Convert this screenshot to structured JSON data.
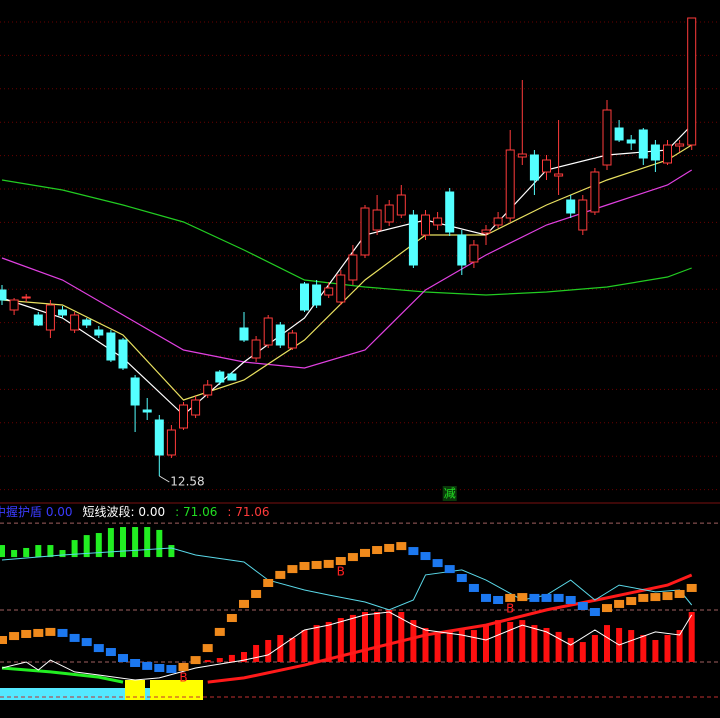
{
  "chart_data": [
    {
      "type": "candlestick",
      "ylim": [
        12.04,
        22.1
      ],
      "up_color": "#ff3b3b",
      "down_color": "#54ffff",
      "candles": [
        [
          16.3,
          16.4,
          16.0,
          16.1
        ],
        [
          15.9,
          16.14,
          15.8,
          16.1
        ],
        [
          16.14,
          16.22,
          16.06,
          16.16
        ],
        [
          15.8,
          15.86,
          15.58,
          15.6
        ],
        [
          15.5,
          16.1,
          15.34,
          16.0
        ],
        [
          15.9,
          15.98,
          15.74,
          15.8
        ],
        [
          15.5,
          15.86,
          15.44,
          15.8
        ],
        [
          15.7,
          15.74,
          15.54,
          15.6
        ],
        [
          15.5,
          15.58,
          15.34,
          15.4
        ],
        [
          15.44,
          15.5,
          14.86,
          14.9
        ],
        [
          15.3,
          15.34,
          14.7,
          14.74
        ],
        [
          14.54,
          14.6,
          13.46,
          14.0
        ],
        [
          13.9,
          14.14,
          13.7,
          13.86
        ],
        [
          13.7,
          13.8,
          12.58,
          13.0
        ],
        [
          13.0,
          13.6,
          12.94,
          13.5
        ],
        [
          13.54,
          14.06,
          13.5,
          14.0
        ],
        [
          13.8,
          14.18,
          13.74,
          14.1
        ],
        [
          14.2,
          14.5,
          14.14,
          14.4
        ],
        [
          14.66,
          14.7,
          14.4,
          14.46
        ],
        [
          14.62,
          14.66,
          14.5,
          14.5
        ],
        [
          15.54,
          15.86,
          15.26,
          15.3
        ],
        [
          14.94,
          15.38,
          14.86,
          15.3
        ],
        [
          15.2,
          15.8,
          15.14,
          15.74
        ],
        [
          15.6,
          15.66,
          15.14,
          15.2
        ],
        [
          15.14,
          15.5,
          15.1,
          15.44
        ],
        [
          16.42,
          16.46,
          15.86,
          15.9
        ],
        [
          16.4,
          16.5,
          15.94,
          16.0
        ],
        [
          16.2,
          16.46,
          16.14,
          16.34
        ],
        [
          16.06,
          16.7,
          16.0,
          16.6
        ],
        [
          16.5,
          17.2,
          16.4,
          17.0
        ],
        [
          17.0,
          18.0,
          16.94,
          17.94
        ],
        [
          17.5,
          18.2,
          17.4,
          17.9
        ],
        [
          17.66,
          18.1,
          17.58,
          18.0
        ],
        [
          17.8,
          18.4,
          17.74,
          18.2
        ],
        [
          17.8,
          17.9,
          16.74,
          16.8
        ],
        [
          17.4,
          17.9,
          17.3,
          17.8
        ],
        [
          17.6,
          17.86,
          17.5,
          17.74
        ],
        [
          18.26,
          18.34,
          17.38,
          17.46
        ],
        [
          17.4,
          17.5,
          16.6,
          16.8
        ],
        [
          16.86,
          17.3,
          16.74,
          17.2
        ],
        [
          17.44,
          17.6,
          17.2,
          17.5
        ],
        [
          17.6,
          17.86,
          17.54,
          17.74
        ],
        [
          17.74,
          19.5,
          17.66,
          19.1
        ],
        [
          18.96,
          20.5,
          18.8,
          19.02
        ],
        [
          19.0,
          19.1,
          18.2,
          18.5
        ],
        [
          18.66,
          19.0,
          18.5,
          18.9
        ],
        [
          18.58,
          19.7,
          18.2,
          18.62
        ],
        [
          18.1,
          18.2,
          17.74,
          17.84
        ],
        [
          17.5,
          18.2,
          17.4,
          18.1
        ],
        [
          17.86,
          18.74,
          17.8,
          18.66
        ],
        [
          18.8,
          20.1,
          18.7,
          19.9
        ],
        [
          19.54,
          19.7,
          19.26,
          19.3
        ],
        [
          19.3,
          19.4,
          19.1,
          19.24
        ],
        [
          19.5,
          19.54,
          18.8,
          18.94
        ],
        [
          19.2,
          19.3,
          18.66,
          18.9
        ],
        [
          18.84,
          19.3,
          18.8,
          19.2
        ],
        [
          19.18,
          19.3,
          19.06,
          19.22
        ],
        [
          19.2,
          21.74,
          19.1,
          21.74
        ]
      ],
      "low_marker": 13,
      "lines_x": [
        0,
        5,
        10,
        15,
        20,
        25,
        30,
        35,
        40,
        45,
        50,
        55,
        57
      ],
      "lines": [
        {
          "color": "#22cc22",
          "values": [
            18.5,
            18.3,
            18.0,
            17.66,
            17.1,
            16.5,
            16.36,
            16.26,
            16.2,
            16.26,
            16.36,
            16.56,
            16.74
          ]
        },
        {
          "color": "#e040e0",
          "values": [
            16.94,
            16.5,
            15.8,
            15.1,
            14.86,
            14.74,
            15.1,
            16.3,
            17.0,
            17.6,
            18.0,
            18.4,
            18.7
          ]
        },
        {
          "color": "#e8e060",
          "values": [
            16.1,
            16.0,
            15.4,
            14.1,
            14.5,
            15.3,
            16.5,
            17.4,
            17.4,
            18.0,
            18.5,
            18.9,
            19.2
          ]
        },
        {
          "color": "#ffffff",
          "values": [
            16.14,
            15.74,
            14.94,
            13.8,
            14.86,
            15.74,
            17.4,
            17.7,
            17.4,
            18.7,
            19.0,
            19.1,
            19.6
          ]
        }
      ],
      "annotations": [
        {
          "label": "减",
          "index": 37
        }
      ]
    },
    {
      "type": "indicator",
      "ylim": [
        0,
        100
      ],
      "legend": [
        {
          "text": "中握护盾  0.00",
          "color": "#3b3bff"
        },
        {
          "text": "短线波段: 0.00",
          "color": "#ffffff"
        },
        {
          "text": ": 71.06",
          "color": "#22dd22"
        },
        {
          "text": ": 71.06",
          "color": "#ff3b3b"
        }
      ],
      "levels": [
        {
          "value": 101.3,
          "color": "#a06060"
        },
        {
          "value": 50.7,
          "color": "#a06060"
        },
        {
          "value": 20.4,
          "color": "#a06060"
        },
        {
          "value": 0,
          "color": "#c03030"
        }
      ],
      "bars": [
        {
          "color": "#22ee22",
          "base": 81.5,
          "values": [
            88.5,
            85.6,
            86.8,
            88.5,
            88.5,
            85.6,
            91.4,
            94.3,
            95.5,
            98.4,
            99.0,
            99.0,
            99.0,
            97.3,
            88.5,
            null,
            null,
            null,
            null,
            null,
            null,
            null,
            null,
            null,
            null,
            null,
            null,
            null,
            null,
            null,
            null,
            null,
            null,
            null,
            null,
            null,
            null,
            null,
            null,
            null,
            null,
            null,
            null,
            null,
            null,
            null,
            null,
            null,
            null,
            null,
            null,
            null,
            null,
            null,
            null,
            null,
            null,
            null
          ]
        },
        {
          "color": "#ff1010",
          "base": 20.4,
          "values": [
            null,
            null,
            null,
            null,
            null,
            null,
            null,
            null,
            null,
            null,
            null,
            null,
            null,
            null,
            null,
            null,
            null,
            21.5,
            22.7,
            24.5,
            26.2,
            30.3,
            33.2,
            36.1,
            34.4,
            39.0,
            41.9,
            43.7,
            46.0,
            47.8,
            49.5,
            49.5,
            50.7,
            49.5,
            44.8,
            40.2,
            37.9,
            39.0,
            40.2,
            39.0,
            41.4,
            44.8,
            43.7,
            44.8,
            41.9,
            40.2,
            37.9,
            34.4,
            32.0,
            36.1,
            41.9,
            40.2,
            39.0,
            36.1,
            33.2,
            36.1,
            39.0,
            49.5
          ]
        }
      ],
      "steps": {
        "up_color": "#f08a1c",
        "down_color": "#1c78f0",
        "values": [
          33.2,
          35.5,
          36.7,
          37.3,
          37.9,
          37.3,
          34.4,
          32.0,
          28.5,
          26.2,
          22.7,
          19.8,
          18.1,
          16.9,
          16.3,
          17.5,
          21.5,
          28.5,
          37.9,
          46.0,
          54.2,
          60.0,
          66.4,
          71.1,
          74.5,
          76.3,
          76.9,
          77.5,
          79.2,
          81.5,
          83.9,
          85.6,
          86.8,
          87.9,
          85.0,
          82.1,
          78.0,
          74.5,
          69.3,
          63.5,
          57.7,
          56.5,
          57.7,
          58.2,
          57.7,
          57.7,
          57.7,
          56.5,
          53.0,
          49.5,
          51.8,
          54.2,
          55.9,
          57.7,
          58.2,
          58.8,
          60.0,
          63.5
        ]
      },
      "lines": [
        {
          "color": "#ff1a1a",
          "width": 3,
          "x": [
            17,
            20,
            25,
            30,
            35,
            40,
            45,
            50,
            55,
            57
          ],
          "values": [
            8.7,
            11.1,
            18.6,
            27.4,
            36.1,
            41.9,
            50.7,
            57.7,
            65.2,
            71.06
          ]
        },
        {
          "color": "#22ee22",
          "width": 3,
          "x": [
            0,
            4,
            8,
            10
          ],
          "values": [
            16.9,
            14.6,
            11.6,
            8.7
          ]
        },
        {
          "color": "#5ad8e8",
          "width": 1,
          "x": [
            0,
            5,
            14,
            16,
            20,
            22,
            25,
            27,
            30,
            32,
            34,
            35,
            38,
            40,
            43,
            45,
            47,
            49,
            51,
            54,
            56,
            57
          ],
          "values": [
            79.8,
            82.7,
            86.8,
            82.7,
            78.6,
            68.1,
            62.3,
            59.4,
            55.3,
            50.7,
            56.5,
            71.1,
            74.0,
            68.1,
            56.5,
            59.4,
            68.1,
            56.5,
            65.2,
            61.2,
            62.3,
            53.6
          ]
        },
        {
          "color": "#ffffff",
          "width": 1,
          "x": [
            0,
            2,
            3,
            4,
            6,
            8,
            11,
            13,
            16,
            20,
            22,
            25,
            27,
            30,
            32,
            34,
            35,
            38,
            40,
            43,
            45,
            47,
            49,
            51,
            54,
            56,
            57
          ],
          "values": [
            16.9,
            20.4,
            15.7,
            21.5,
            14.6,
            12.8,
            9.9,
            11.1,
            16.9,
            21.5,
            24.5,
            39.0,
            41.9,
            47.8,
            49.5,
            41.9,
            39.0,
            36.1,
            33.2,
            41.9,
            37.9,
            30.3,
            39.0,
            30.3,
            37.9,
            36.1,
            47.8
          ]
        }
      ],
      "signals": [
        {
          "label": "B",
          "index": 28
        },
        {
          "label": "B",
          "index": 42
        },
        {
          "label": "B",
          "index": 15
        }
      ]
    }
  ]
}
